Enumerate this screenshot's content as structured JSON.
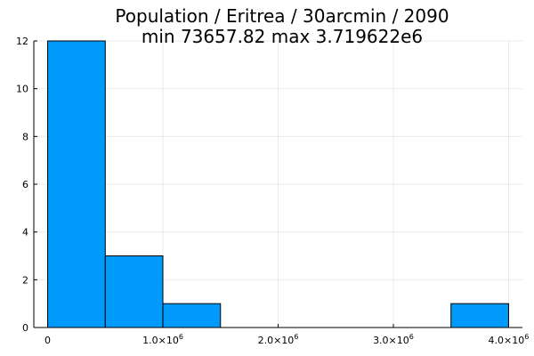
{
  "chart_data": {
    "type": "bar",
    "title": "Population / Eritrea / 30arcmin / 2090",
    "subtitle": "min 73657.82  max 3.719622e6",
    "bin_edges": [
      0,
      500000,
      1000000,
      1500000,
      2000000,
      2500000,
      3000000,
      3500000,
      4000000
    ],
    "values": [
      12,
      3,
      1,
      0,
      0,
      0,
      0,
      1
    ],
    "xlim": [
      -120000,
      4120000
    ],
    "ylim": [
      0,
      12
    ],
    "x_ticks": [
      {
        "value": 0,
        "mantissa": "0",
        "exponent": ""
      },
      {
        "value": 1000000,
        "mantissa": "1.0×10",
        "exponent": "6"
      },
      {
        "value": 2000000,
        "mantissa": "2.0×10",
        "exponent": "6"
      },
      {
        "value": 3000000,
        "mantissa": "3.0×10",
        "exponent": "6"
      },
      {
        "value": 4000000,
        "mantissa": "4.0×10",
        "exponent": "6"
      }
    ],
    "y_ticks": [
      0,
      2,
      4,
      6,
      8,
      10,
      12
    ],
    "grid": true,
    "legend": "none",
    "bar_color": "#009AFA",
    "xlabel": "",
    "ylabel": ""
  }
}
